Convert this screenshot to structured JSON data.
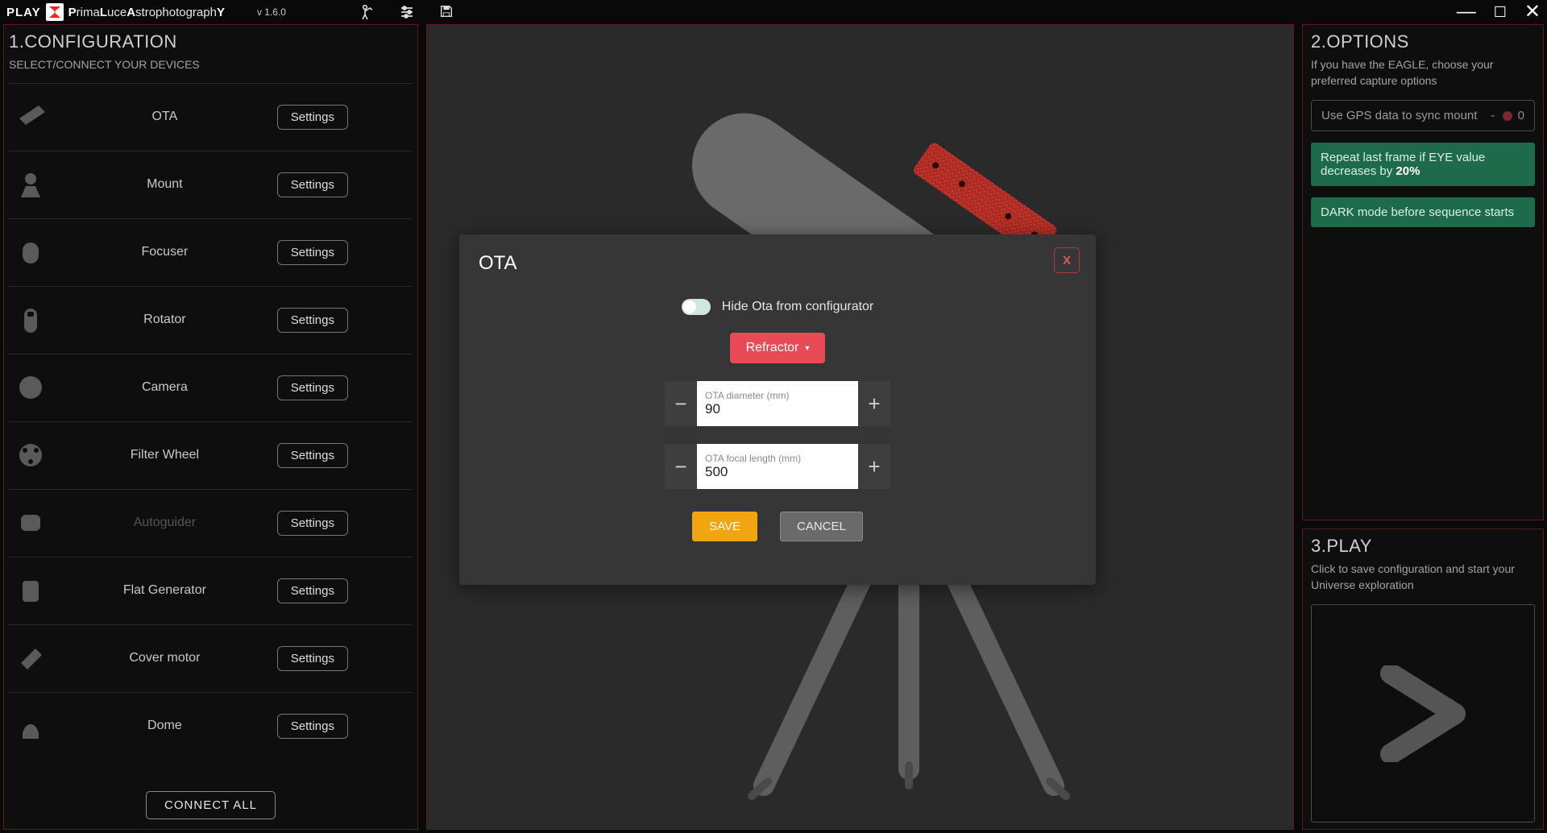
{
  "topbar": {
    "play_label": "PLAY",
    "tagline_parts": [
      "P",
      "rima",
      "L",
      "uce",
      "A",
      "strophotograph",
      "Y"
    ],
    "version": "v 1.6.0"
  },
  "left": {
    "title": "1.CONFIGURATION",
    "subtitle": "SELECT/CONNECT YOUR DEVICES",
    "settings_label": "Settings",
    "connect_all": "CONNECT ALL",
    "devices": [
      {
        "label": "OTA",
        "disabled": false
      },
      {
        "label": "Mount",
        "disabled": false
      },
      {
        "label": "Focuser",
        "disabled": false
      },
      {
        "label": "Rotator",
        "disabled": false
      },
      {
        "label": "Camera",
        "disabled": false
      },
      {
        "label": "Filter Wheel",
        "disabled": false
      },
      {
        "label": "Autoguider",
        "disabled": true
      },
      {
        "label": "Flat Generator",
        "disabled": false
      },
      {
        "label": "Cover motor",
        "disabled": false
      },
      {
        "label": "Dome",
        "disabled": false
      }
    ]
  },
  "modal": {
    "title": "OTA",
    "close_label": "X",
    "toggle_label": "Hide Ota from configurator",
    "type_button": "Refractor",
    "diameter_label": "OTA diameter (mm)",
    "diameter_value": "90",
    "focal_label": "OTA focal length (mm)",
    "focal_value": "500",
    "save": "SAVE",
    "cancel": "CANCEL"
  },
  "right": {
    "options_title": "2.OPTIONS",
    "options_sub": "If you have the EAGLE, choose your preferred capture options",
    "gps_line": "Use GPS data to sync mount",
    "gps_count": "0",
    "repeat_prefix": "Repeat last frame if EYE value decreases by ",
    "repeat_pct": "20%",
    "dark_mode": "DARK mode before sequence starts",
    "play_title": "3.PLAY",
    "play_sub": "Click to save configuration and start your Universe exploration"
  },
  "colors": {
    "accent_red": "#e84b55",
    "accent_orange": "#f0a511",
    "accent_green": "#1e6b4b",
    "border_red": "#5a1b1b",
    "bg_dark": "#090909",
    "bg_panel_center": "#2a2a2a",
    "bg_modal": "#363636"
  }
}
